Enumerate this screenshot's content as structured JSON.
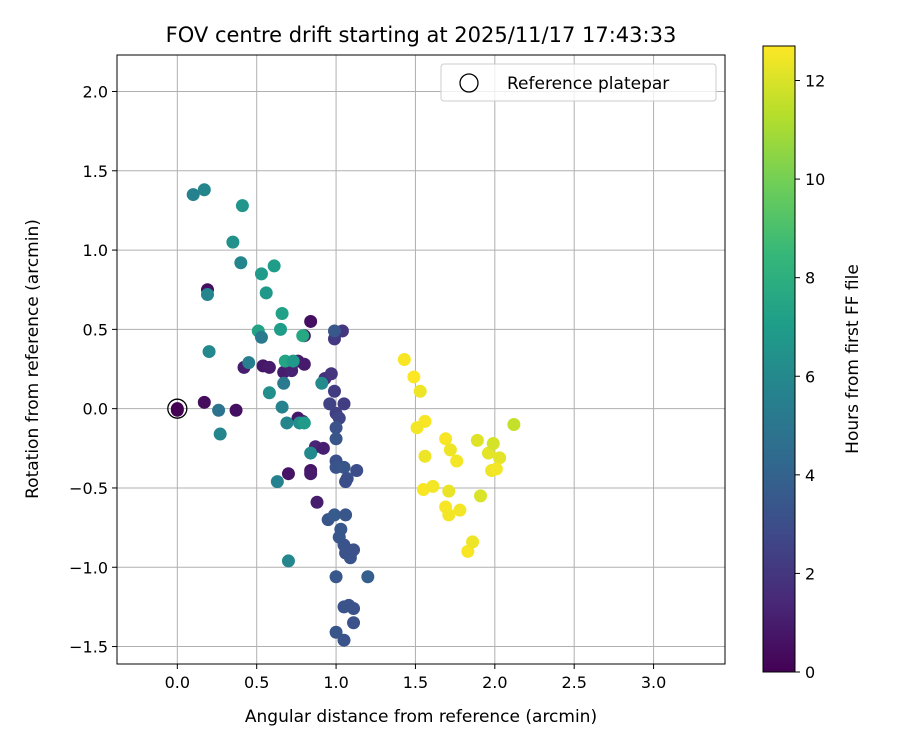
{
  "chart_data": {
    "type": "scatter",
    "title": "FOV centre drift starting at 2025/11/17 17:43:33",
    "xlabel": "Angular distance from reference (arcmin)",
    "ylabel": "Rotation from reference (arcmin)",
    "xlim": [
      -0.38,
      3.45
    ],
    "ylim": [
      -1.61,
      2.23
    ],
    "xticks": [
      "0.0",
      "0.5",
      "1.0",
      "1.5",
      "2.0",
      "2.5",
      "3.0"
    ],
    "yticks": [
      "−1.5",
      "−1.0",
      "−0.5",
      "0.0",
      "0.5",
      "1.0",
      "1.5",
      "2.0"
    ],
    "grid": true,
    "legend": {
      "position": "top-right",
      "entries": [
        {
          "label": "Reference platepar",
          "marker": "open-circle"
        }
      ]
    },
    "reference_point": {
      "x": 0.0,
      "y": 0.0,
      "hours": 0.0
    },
    "colorbar": {
      "label": "Hours from first FF file",
      "colormap": "viridis",
      "range": [
        0,
        12.7
      ],
      "ticks": [
        "0",
        "2",
        "4",
        "6",
        "8",
        "10",
        "12"
      ],
      "stops": [
        "#440154",
        "#482878",
        "#3e4a89",
        "#31688e",
        "#26828e",
        "#1f9e89",
        "#35b779",
        "#6ece58",
        "#b5de2b",
        "#fde725"
      ]
    },
    "series": [
      {
        "points": [
          {
            "x": 0.0,
            "y": -0.01,
            "h": 0.1
          },
          {
            "x": 0.17,
            "y": 0.04,
            "h": 0.4
          },
          {
            "x": 0.19,
            "y": 0.75,
            "h": 0.5
          },
          {
            "x": 0.37,
            "y": -0.01,
            "h": 0.5
          },
          {
            "x": 0.42,
            "y": 0.26,
            "h": 1.0
          },
          {
            "x": 0.54,
            "y": 0.27,
            "h": 0.8
          },
          {
            "x": 0.58,
            "y": 0.26,
            "h": 0.9
          },
          {
            "x": 0.67,
            "y": 0.23,
            "h": 1.0
          },
          {
            "x": 0.72,
            "y": 0.24,
            "h": 1.2
          },
          {
            "x": 0.76,
            "y": 0.3,
            "h": 1.0
          },
          {
            "x": 0.8,
            "y": 0.28,
            "h": 0.9
          },
          {
            "x": 0.8,
            "y": 0.46,
            "h": 0.6
          },
          {
            "x": 0.84,
            "y": 0.55,
            "h": 0.5
          },
          {
            "x": 0.76,
            "y": -0.06,
            "h": 0.8
          },
          {
            "x": 0.79,
            "y": -0.08,
            "h": 1.0
          },
          {
            "x": 0.7,
            "y": -0.41,
            "h": 0.7
          },
          {
            "x": 0.84,
            "y": -0.39,
            "h": 0.7
          },
          {
            "x": 0.84,
            "y": -0.41,
            "h": 0.9
          },
          {
            "x": 0.87,
            "y": -0.24,
            "h": 1.3
          },
          {
            "x": 0.92,
            "y": -0.25,
            "h": 1.1
          },
          {
            "x": 0.88,
            "y": -0.59,
            "h": 1.0
          },
          {
            "x": 0.93,
            "y": 0.19,
            "h": 1.7
          },
          {
            "x": 0.97,
            "y": 0.22,
            "h": 1.9
          },
          {
            "x": 0.99,
            "y": 0.11,
            "h": 2.2
          },
          {
            "x": 0.96,
            "y": 0.03,
            "h": 2.5
          },
          {
            "x": 1.0,
            "y": -0.03,
            "h": 2.4
          },
          {
            "x": 1.02,
            "y": -0.06,
            "h": 2.6
          },
          {
            "x": 1.05,
            "y": 0.03,
            "h": 2.3
          },
          {
            "x": 0.99,
            "y": 0.44,
            "h": 2.1
          },
          {
            "x": 1.04,
            "y": 0.49,
            "h": 2.0
          },
          {
            "x": 0.99,
            "y": 0.49,
            "h": 3.5
          },
          {
            "x": 1.0,
            "y": -0.12,
            "h": 3.2
          },
          {
            "x": 1.0,
            "y": -0.19,
            "h": 3.4
          },
          {
            "x": 1.0,
            "y": -0.33,
            "h": 3.1
          },
          {
            "x": 1.0,
            "y": -0.37,
            "h": 3.3
          },
          {
            "x": 1.05,
            "y": -0.37,
            "h": 3.4
          },
          {
            "x": 1.07,
            "y": -0.44,
            "h": 3.1
          },
          {
            "x": 1.06,
            "y": -0.46,
            "h": 3.0
          },
          {
            "x": 1.13,
            "y": -0.39,
            "h": 3.0
          },
          {
            "x": 0.95,
            "y": -0.7,
            "h": 3.4
          },
          {
            "x": 0.99,
            "y": -0.67,
            "h": 3.6
          },
          {
            "x": 1.06,
            "y": -0.67,
            "h": 3.4
          },
          {
            "x": 1.03,
            "y": -0.76,
            "h": 3.5
          },
          {
            "x": 1.02,
            "y": -0.81,
            "h": 3.5
          },
          {
            "x": 1.05,
            "y": -0.86,
            "h": 3.3
          },
          {
            "x": 1.06,
            "y": -0.91,
            "h": 3.2
          },
          {
            "x": 1.09,
            "y": -0.92,
            "h": 3.4
          },
          {
            "x": 1.09,
            "y": -0.94,
            "h": 3.3
          },
          {
            "x": 1.11,
            "y": -0.89,
            "h": 3.2
          },
          {
            "x": 1.0,
            "y": -1.06,
            "h": 3.5
          },
          {
            "x": 1.05,
            "y": -1.25,
            "h": 3.3
          },
          {
            "x": 1.08,
            "y": -1.24,
            "h": 3.3
          },
          {
            "x": 1.11,
            "y": -1.26,
            "h": 3.2
          },
          {
            "x": 1.11,
            "y": -1.35,
            "h": 3.2
          },
          {
            "x": 1.0,
            "y": -1.41,
            "h": 3.4
          },
          {
            "x": 1.05,
            "y": -1.46,
            "h": 3.3
          },
          {
            "x": 1.2,
            "y": -1.06,
            "h": 3.8
          },
          {
            "x": 0.1,
            "y": 1.35,
            "h": 5.6
          },
          {
            "x": 0.17,
            "y": 1.38,
            "h": 5.8
          },
          {
            "x": 0.41,
            "y": 1.28,
            "h": 6.6
          },
          {
            "x": 0.35,
            "y": 1.05,
            "h": 6.4
          },
          {
            "x": 0.4,
            "y": 0.92,
            "h": 5.8
          },
          {
            "x": 0.53,
            "y": 0.85,
            "h": 6.9
          },
          {
            "x": 0.61,
            "y": 0.9,
            "h": 7.0
          },
          {
            "x": 0.56,
            "y": 0.73,
            "h": 6.8
          },
          {
            "x": 0.19,
            "y": 0.72,
            "h": 5.8
          },
          {
            "x": 0.66,
            "y": 0.6,
            "h": 7.2
          },
          {
            "x": 0.51,
            "y": 0.49,
            "h": 7.3
          },
          {
            "x": 0.53,
            "y": 0.45,
            "h": 5.2
          },
          {
            "x": 0.65,
            "y": 0.5,
            "h": 7.0
          },
          {
            "x": 0.79,
            "y": 0.46,
            "h": 7.6
          },
          {
            "x": 0.2,
            "y": 0.36,
            "h": 6.0
          },
          {
            "x": 0.45,
            "y": 0.29,
            "h": 5.4
          },
          {
            "x": 0.68,
            "y": 0.3,
            "h": 7.4
          },
          {
            "x": 0.73,
            "y": 0.3,
            "h": 6.8
          },
          {
            "x": 0.67,
            "y": 0.16,
            "h": 5.2
          },
          {
            "x": 0.58,
            "y": 0.1,
            "h": 6.3
          },
          {
            "x": 0.91,
            "y": 0.16,
            "h": 6.1
          },
          {
            "x": 0.66,
            "y": 0.01,
            "h": 5.7
          },
          {
            "x": 0.26,
            "y": -0.01,
            "h": 4.9
          },
          {
            "x": 0.69,
            "y": -0.09,
            "h": 5.8
          },
          {
            "x": 0.77,
            "y": -0.09,
            "h": 6.2
          },
          {
            "x": 0.8,
            "y": -0.09,
            "h": 6.9
          },
          {
            "x": 0.27,
            "y": -0.16,
            "h": 5.8
          },
          {
            "x": 0.84,
            "y": -0.28,
            "h": 6.0
          },
          {
            "x": 0.63,
            "y": -0.46,
            "h": 5.6
          },
          {
            "x": 0.7,
            "y": -0.96,
            "h": 5.9
          },
          {
            "x": 1.43,
            "y": 0.31,
            "h": 12.6
          },
          {
            "x": 1.49,
            "y": 0.2,
            "h": 12.7
          },
          {
            "x": 1.53,
            "y": 0.11,
            "h": 12.4
          },
          {
            "x": 1.56,
            "y": -0.08,
            "h": 12.6
          },
          {
            "x": 1.51,
            "y": -0.12,
            "h": 12.5
          },
          {
            "x": 1.56,
            "y": -0.3,
            "h": 12.4
          },
          {
            "x": 1.55,
            "y": -0.51,
            "h": 12.6
          },
          {
            "x": 1.61,
            "y": -0.49,
            "h": 12.5
          },
          {
            "x": 1.69,
            "y": -0.19,
            "h": 12.6
          },
          {
            "x": 1.72,
            "y": -0.26,
            "h": 12.4
          },
          {
            "x": 1.76,
            "y": -0.33,
            "h": 12.5
          },
          {
            "x": 1.71,
            "y": -0.52,
            "h": 12.3
          },
          {
            "x": 1.69,
            "y": -0.62,
            "h": 12.6
          },
          {
            "x": 1.71,
            "y": -0.67,
            "h": 12.5
          },
          {
            "x": 1.78,
            "y": -0.64,
            "h": 12.5
          },
          {
            "x": 1.83,
            "y": -0.9,
            "h": 12.6
          },
          {
            "x": 1.86,
            "y": -0.84,
            "h": 12.4
          },
          {
            "x": 1.89,
            "y": -0.2,
            "h": 12.1
          },
          {
            "x": 1.96,
            "y": -0.28,
            "h": 12.2
          },
          {
            "x": 1.99,
            "y": -0.22,
            "h": 11.9
          },
          {
            "x": 2.03,
            "y": -0.31,
            "h": 12.2
          },
          {
            "x": 1.98,
            "y": -0.39,
            "h": 12.4
          },
          {
            "x": 2.01,
            "y": -0.38,
            "h": 12.5
          },
          {
            "x": 1.91,
            "y": -0.55,
            "h": 12.0
          },
          {
            "x": 2.12,
            "y": -0.1,
            "h": 11.6
          }
        ]
      }
    ]
  }
}
